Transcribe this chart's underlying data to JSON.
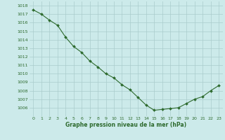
{
  "x": [
    0,
    1,
    2,
    3,
    4,
    5,
    6,
    7,
    8,
    9,
    10,
    11,
    12,
    13,
    14,
    15,
    16,
    17,
    18,
    19,
    20,
    21,
    22,
    23
  ],
  "y": [
    1017.5,
    1017.0,
    1016.3,
    1015.7,
    1014.3,
    1013.2,
    1012.5,
    1011.5,
    1010.8,
    1010.0,
    1009.5,
    1008.7,
    1008.1,
    1007.2,
    1006.3,
    1005.7,
    1005.8,
    1005.9,
    1006.0,
    1006.5,
    1007.0,
    1007.3,
    1008.0,
    1008.6
  ],
  "line_color": "#2d6a2d",
  "marker": "D",
  "marker_size": 2.0,
  "bg_color": "#cceaea",
  "grid_color": "#aacccc",
  "axis_label_color": "#2d6a2d",
  "tick_color": "#2d6a2d",
  "xlabel": "Graphe pression niveau de la mer (hPa)",
  "ylim": [
    1005.0,
    1018.5
  ],
  "xlim": [
    -0.5,
    23.5
  ],
  "yticks": [
    1006,
    1007,
    1008,
    1009,
    1010,
    1011,
    1012,
    1013,
    1014,
    1015,
    1016,
    1017,
    1018
  ],
  "xticks": [
    0,
    1,
    2,
    3,
    4,
    5,
    6,
    7,
    8,
    9,
    10,
    11,
    12,
    13,
    14,
    15,
    16,
    17,
    18,
    19,
    20,
    21,
    22,
    23
  ],
  "tick_fontsize": 4.5,
  "xlabel_fontsize": 5.5,
  "linewidth": 0.8
}
